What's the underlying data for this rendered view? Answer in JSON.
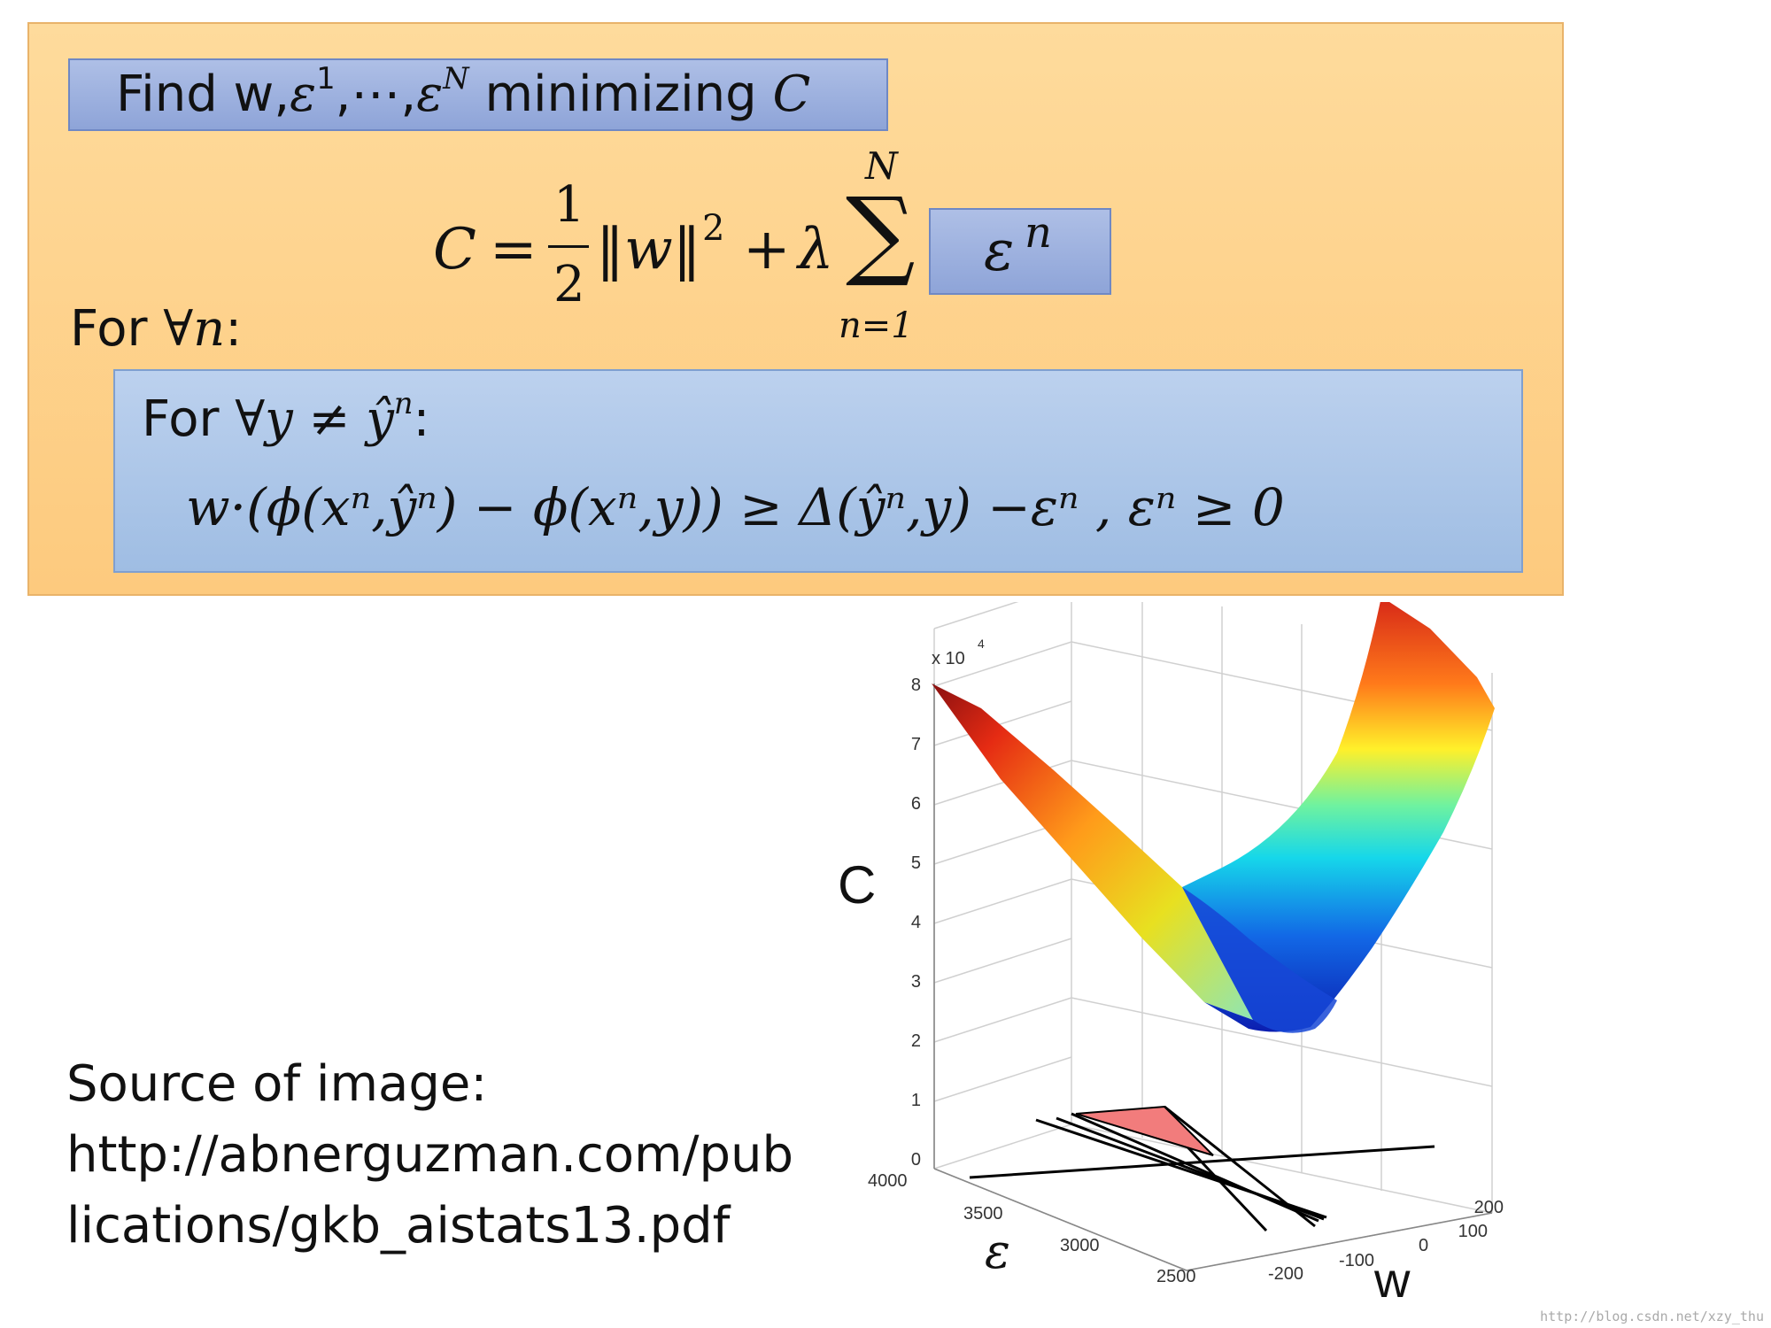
{
  "slide": {
    "find_box": {
      "prefix": "Find w,",
      "eps": "ε",
      "sup1": "1",
      "sep": ",⋯,",
      "supN": "N",
      "middle": " minimizing ",
      "C": "C"
    },
    "cost": {
      "C": "C",
      "eq": "=",
      "num": "1",
      "den": "2",
      "norm": "‖w‖",
      "norm_sup": "2",
      "plus": "+",
      "lambda": "λ",
      "sum_top": "N",
      "sigma": "∑",
      "sum_bottom": "n=1",
      "eps": "ε",
      "eps_sup": "n"
    },
    "for_all_n": {
      "text": "For ",
      "var": "∀n",
      "colon": ":"
    },
    "constraint": {
      "line1_prefix": "For ",
      "line1_math": "∀y ≠ ŷ",
      "line1_sup": "n",
      "line1_colon": ":",
      "line2": "w·(ϕ(xⁿ,ŷⁿ) − ϕ(xⁿ,y)) ≥ Δ(ŷⁿ,y) −εⁿ ,  εⁿ ≥ 0"
    },
    "source": {
      "line1": "Source of image:",
      "line2": "http://abnerguzman.com/pub",
      "line3": "lications/gkb_aistats13.pdf"
    },
    "plot": {
      "z_multiplier": "x 10",
      "z_exp": "4",
      "z_ticks": [
        "8",
        "7",
        "6",
        "5",
        "4",
        "3",
        "2",
        "1",
        "0"
      ],
      "eps_ticks": [
        "4000",
        "3500",
        "3000",
        "2500"
      ],
      "w_ticks": [
        "-200",
        "-100",
        "0",
        "100",
        "200"
      ],
      "z_label": "C",
      "eps_label": "ε",
      "w_label": "w"
    },
    "watermark": "http://blog.csdn.net/xzy_thu"
  }
}
